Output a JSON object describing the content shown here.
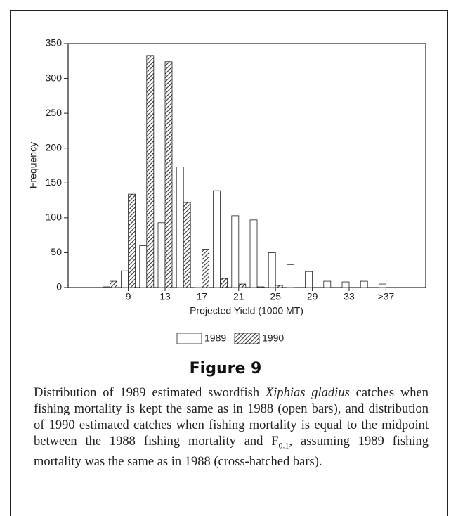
{
  "chart_data": {
    "type": "bar",
    "ylabel": "Frequency",
    "xlabel": "Projected Yield (1000 MT)",
    "categories": [
      null,
      null,
      null,
      "9",
      null,
      "13",
      null,
      "17",
      null,
      "21",
      null,
      "25",
      null,
      "29",
      null,
      "33",
      null,
      ">37"
    ],
    "series": [
      {
        "name": "1989",
        "color": "#ffffff",
        "values": [
          0,
          0,
          1,
          24,
          60,
          93,
          173,
          170,
          139,
          103,
          97,
          50,
          33,
          23,
          9,
          8,
          9,
          5
        ]
      },
      {
        "name": "1990",
        "color": "#333333",
        "values": [
          0,
          0,
          9,
          134,
          333,
          324,
          122,
          55,
          13,
          5,
          1,
          3,
          0,
          0,
          0,
          0,
          0,
          0
        ]
      }
    ],
    "ylim": [
      0,
      350
    ],
    "yticks": [
      0,
      50,
      100,
      150,
      200,
      250,
      300,
      350
    ],
    "grid": false
  },
  "figure_label": "Figure 9",
  "caption": [
    "Distribution of 1989 estimated swordfish ",
    "Xiphias gladius",
    " catches when fishing mortality is kept the same as in 1988 (open bars), and distribution of 1990 estimated catches when fishing mortality is equal to the midpoint between the 1988 fishing mortality and F",
    "0.1",
    ", assuming 1989 fishing mortality was the same as in 1988 (cross-hatched bars)."
  ]
}
